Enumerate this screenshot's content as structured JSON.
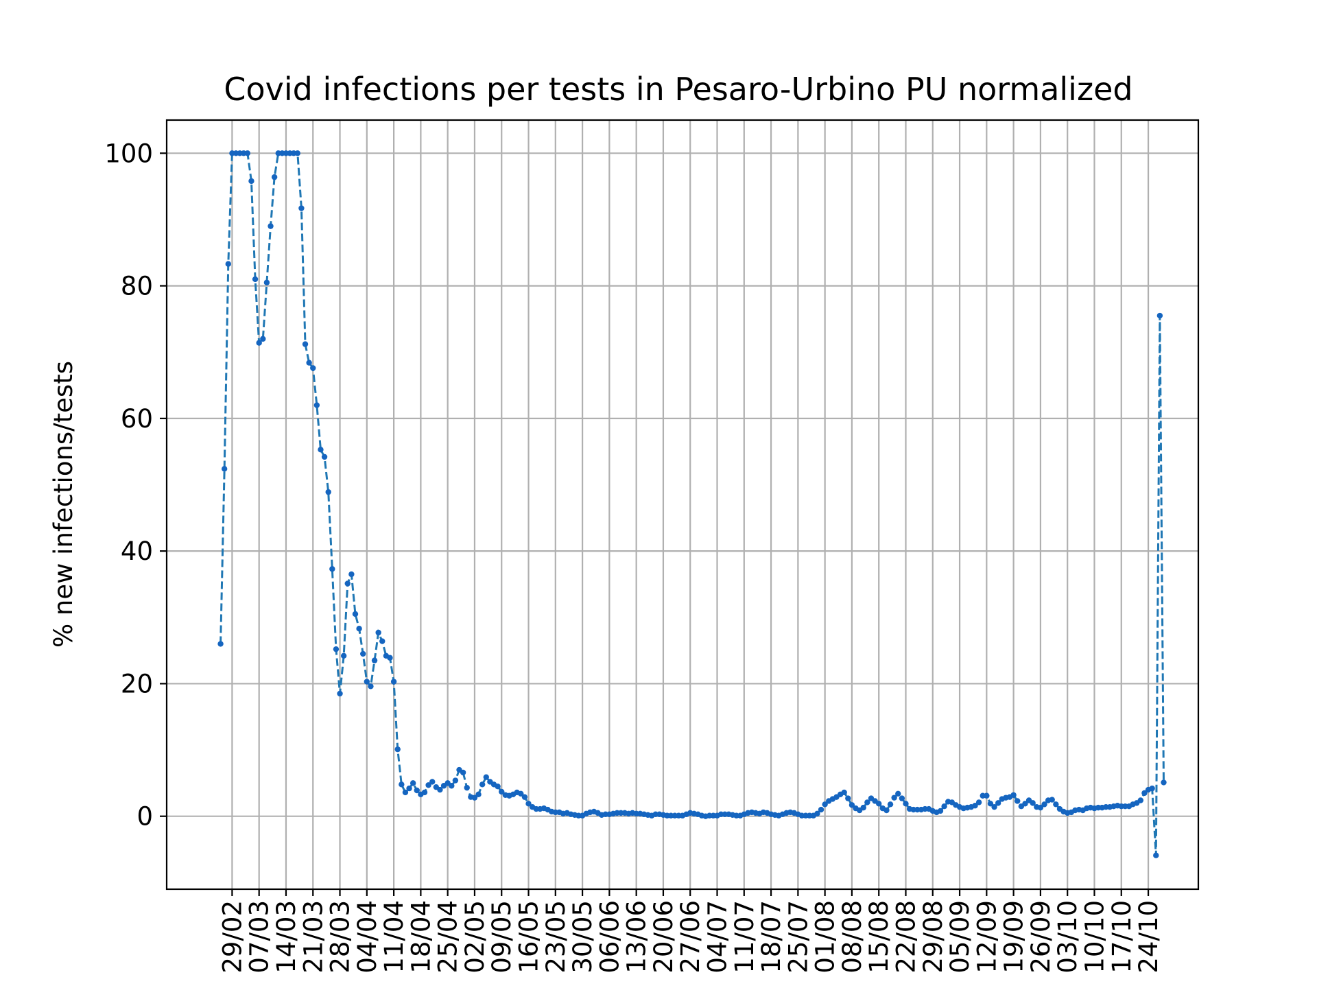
{
  "chart_data": {
    "type": "line",
    "title": "Covid infections per tests in Pesaro-Urbino PU normalized",
    "xlabel": "",
    "ylabel": "% new infections/tests",
    "ylim": [
      -11,
      105
    ],
    "yticks": [
      0,
      20,
      40,
      60,
      80,
      100
    ],
    "grid": true,
    "x_start": "2020-02-26",
    "x_end": "2020-10-24",
    "xlim": [
      "2020-02-12",
      "2020-11-06"
    ],
    "xtick_dates": [
      "2020-02-29",
      "2020-03-07",
      "2020-03-14",
      "2020-03-21",
      "2020-03-28",
      "2020-04-04",
      "2020-04-11",
      "2020-04-18",
      "2020-04-25",
      "2020-05-02",
      "2020-05-09",
      "2020-05-16",
      "2020-05-23",
      "2020-05-30",
      "2020-06-06",
      "2020-06-13",
      "2020-06-20",
      "2020-06-27",
      "2020-07-04",
      "2020-07-11",
      "2020-07-18",
      "2020-07-25",
      "2020-08-01",
      "2020-08-08",
      "2020-08-15",
      "2020-08-22",
      "2020-08-29",
      "2020-09-05",
      "2020-09-12",
      "2020-09-19",
      "2020-09-26",
      "2020-10-03",
      "2020-10-10",
      "2020-10-17",
      "2020-10-24"
    ],
    "xtick_labels": [
      "29/02",
      "07/03",
      "14/03",
      "21/03",
      "28/03",
      "04/04",
      "11/04",
      "18/04",
      "25/04",
      "02/05",
      "09/05",
      "16/05",
      "23/05",
      "30/05",
      "06/06",
      "13/06",
      "20/06",
      "27/06",
      "04/07",
      "11/07",
      "18/07",
      "25/07",
      "01/08",
      "08/08",
      "15/08",
      "22/08",
      "29/08",
      "05/09",
      "12/09",
      "19/09",
      "26/09",
      "03/10",
      "10/10",
      "17/10",
      "24/10"
    ],
    "series": [
      {
        "color": "#1f77b4",
        "marker_color": "#1565c0",
        "values": [
          26,
          52.4,
          83.3,
          100,
          100,
          100,
          100,
          100,
          95.8,
          81,
          71.4,
          72,
          80.5,
          89,
          96.4,
          100,
          100,
          100,
          100,
          100,
          100,
          91.7,
          71.2,
          68.4,
          67.6,
          62,
          55.3,
          54.2,
          48.9,
          37.3,
          25.2,
          18.5,
          24.2,
          35.1,
          36.5,
          30.5,
          28.3,
          24.5,
          20.3,
          19.6,
          23.5,
          27.7,
          26.4,
          24.2,
          23.9,
          20.3,
          10.1,
          4.8,
          3.6,
          4.2,
          5,
          3.9,
          3.3,
          3.6,
          4.7,
          5.2,
          4.4,
          4,
          4.6,
          5,
          4.6,
          5.4,
          7,
          6.6,
          4.3,
          2.9,
          2.8,
          3.3,
          4.8,
          5.9,
          5.2,
          4.8,
          4.5,
          3.7,
          3.2,
          3.1,
          3.3,
          3.6,
          3.4,
          2.9,
          1.9,
          1.4,
          1.1,
          1.1,
          1.2,
          1,
          0.7,
          0.6,
          0.6,
          0.4,
          0.5,
          0.3,
          0.2,
          0.1,
          0.1,
          0.4,
          0.6,
          0.7,
          0.5,
          0.2,
          0.3,
          0.3,
          0.4,
          0.5,
          0.5,
          0.5,
          0.4,
          0.5,
          0.4,
          0.4,
          0.3,
          0.2,
          0.1,
          0.3,
          0.3,
          0.2,
          0.1,
          0.1,
          0.1,
          0.1,
          0.1,
          0.3,
          0.5,
          0.4,
          0.3,
          0.1,
          0,
          0.1,
          0.1,
          0.1,
          0.3,
          0.3,
          0.3,
          0.2,
          0.1,
          0.1,
          0.3,
          0.5,
          0.6,
          0.5,
          0.4,
          0.6,
          0.5,
          0.3,
          0.2,
          0.1,
          0.3,
          0.5,
          0.6,
          0.5,
          0.3,
          0.1,
          0.1,
          0.1,
          0.1,
          0.4,
          1,
          1.8,
          2.3,
          2.6,
          2.9,
          3.3,
          3.6,
          2.7,
          1.7,
          1.2,
          0.9,
          1.3,
          2.1,
          2.7,
          2.3,
          1.9,
          1.2,
          0.9,
          1.8,
          2.8,
          3.4,
          2.7,
          1.9,
          1.1,
          1,
          1,
          1,
          1.1,
          1.1,
          0.8,
          0.6,
          0.8,
          1.5,
          2.2,
          2.1,
          1.7,
          1.4,
          1.2,
          1.3,
          1.4,
          1.6,
          2.1,
          3.1,
          3.1,
          1.9,
          1.4,
          2,
          2.6,
          2.8,
          2.9,
          3.2,
          2.3,
          1.5,
          1.9,
          2.4,
          2,
          1.4,
          1.3,
          1.8,
          2.4,
          2.5,
          1.8,
          1.1,
          0.7,
          0.5,
          0.6,
          0.9,
          1,
          0.9,
          1.2,
          1.3,
          1.2,
          1.3,
          1.3,
          1.4,
          1.4,
          1.5,
          1.6,
          1.5,
          1.5,
          1.5,
          1.8,
          2,
          2.4,
          3.5,
          4,
          4.2,
          -5.9,
          75.5,
          5.1
        ]
      }
    ]
  }
}
